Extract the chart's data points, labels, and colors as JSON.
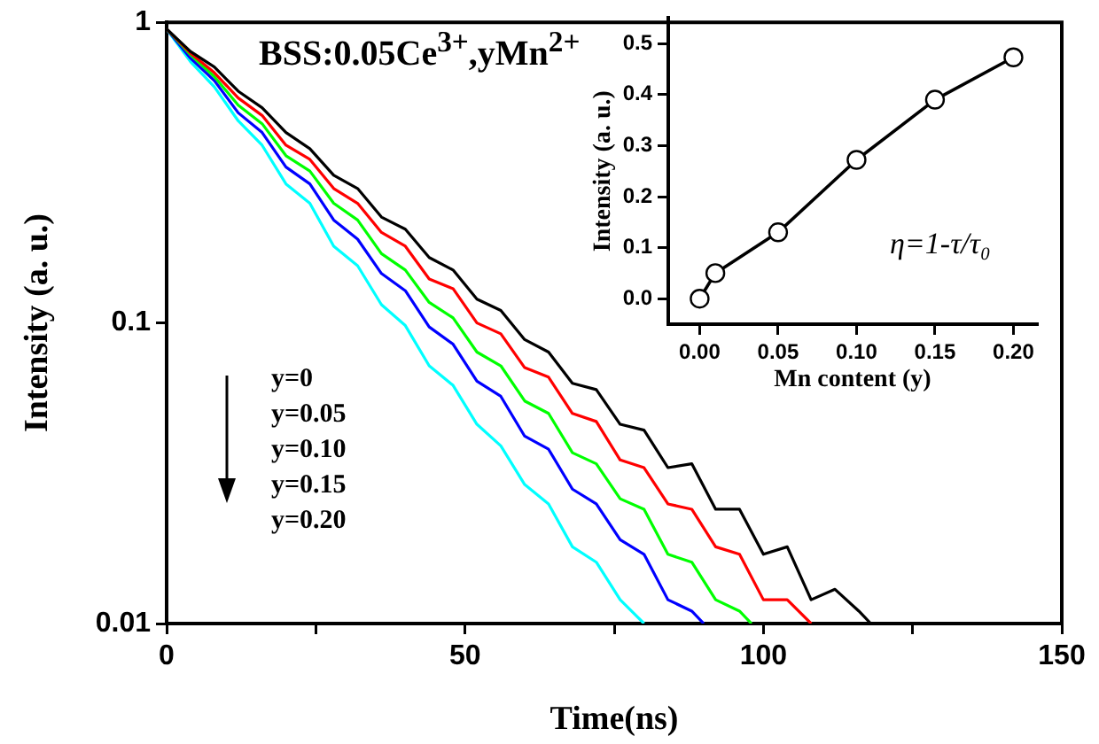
{
  "chart_data": [
    {
      "type": "line",
      "title": "BSS:0.05Ce$^{3+}$,yMn$^{2+}$",
      "xlabel": "Time(ns)",
      "ylabel": "Intensity (a. u.)",
      "log": "y",
      "grid": false,
      "marker": "none",
      "line_style": "solid",
      "annotations": [
        "y=0",
        "y=0.05",
        "y=0.10",
        "y=0.15",
        "y=0.20"
      ],
      "xlim": [
        0,
        150
      ],
      "xticks": [
        0,
        {
          "value": 25,
          "label": null
        },
        50,
        {
          "value": 75,
          "label": null
        },
        100,
        {
          "value": 125,
          "label": null
        },
        150
      ],
      "ylim": [
        0.01,
        1
      ],
      "yticks": [
        0.01,
        0.1,
        1
      ],
      "series": [
        {
          "color": "#000000",
          "x": [
            0,
            4,
            8,
            12,
            16,
            20,
            24,
            28,
            32,
            36,
            40,
            44,
            48,
            52,
            56,
            60,
            64,
            68,
            72,
            76,
            80,
            84,
            88,
            92,
            96,
            100,
            104,
            108,
            112,
            116,
            118
          ],
          "values": [
            0.95,
            0.8,
            0.71,
            0.59,
            0.52,
            0.43,
            0.38,
            0.31,
            0.28,
            0.225,
            0.205,
            0.165,
            0.15,
            0.12,
            0.11,
            0.088,
            0.08,
            0.063,
            0.06,
            0.046,
            0.044,
            0.033,
            0.034,
            0.024,
            0.024,
            0.017,
            0.018,
            0.012,
            0.013,
            0.011,
            0.01
          ]
        },
        {
          "color": "#ff0000",
          "x": [
            0,
            4,
            8,
            12,
            16,
            20,
            24,
            28,
            32,
            36,
            40,
            44,
            48,
            52,
            56,
            60,
            64,
            68,
            72,
            76,
            80,
            84,
            88,
            92,
            96,
            100,
            104,
            108
          ],
          "values": [
            0.95,
            0.79,
            0.68,
            0.56,
            0.49,
            0.39,
            0.35,
            0.28,
            0.25,
            0.2,
            0.18,
            0.14,
            0.13,
            0.1,
            0.092,
            0.071,
            0.066,
            0.05,
            0.047,
            0.035,
            0.033,
            0.025,
            0.024,
            0.018,
            0.017,
            0.012,
            0.012,
            0.01
          ]
        },
        {
          "color": "#00ff00",
          "x": [
            0,
            4,
            8,
            12,
            16,
            20,
            24,
            28,
            32,
            36,
            40,
            44,
            48,
            52,
            56,
            60,
            64,
            68,
            72,
            76,
            80,
            84,
            88,
            92,
            96,
            98
          ],
          "values": [
            0.95,
            0.78,
            0.66,
            0.53,
            0.46,
            0.36,
            0.32,
            0.25,
            0.22,
            0.17,
            0.15,
            0.117,
            0.104,
            0.08,
            0.072,
            0.055,
            0.05,
            0.037,
            0.034,
            0.026,
            0.024,
            0.017,
            0.016,
            0.012,
            0.011,
            0.01
          ]
        },
        {
          "color": "#0000ff",
          "x": [
            0,
            4,
            8,
            12,
            16,
            20,
            24,
            28,
            32,
            36,
            40,
            44,
            48,
            52,
            56,
            60,
            64,
            68,
            72,
            76,
            80,
            84,
            88,
            90
          ],
          "values": [
            0.95,
            0.76,
            0.64,
            0.5,
            0.43,
            0.33,
            0.29,
            0.22,
            0.19,
            0.146,
            0.128,
            0.097,
            0.085,
            0.064,
            0.057,
            0.042,
            0.038,
            0.028,
            0.025,
            0.019,
            0.017,
            0.012,
            0.011,
            0.01
          ]
        },
        {
          "color": "#00ffff",
          "x": [
            0,
            4,
            8,
            12,
            16,
            20,
            24,
            28,
            32,
            36,
            40,
            44,
            48,
            52,
            56,
            60,
            64,
            68,
            72,
            76,
            80
          ],
          "values": [
            0.95,
            0.74,
            0.61,
            0.47,
            0.39,
            0.29,
            0.25,
            0.18,
            0.155,
            0.115,
            0.098,
            0.072,
            0.062,
            0.046,
            0.039,
            0.029,
            0.025,
            0.018,
            0.016,
            0.012,
            0.01
          ]
        }
      ]
    },
    {
      "type": "line",
      "xlabel": "Mn content (y)",
      "ylabel": "Intensity (a. u.)",
      "grid": false,
      "marker": "circle",
      "line_style": "solid",
      "xlim": [
        -0.02,
        0.215
      ],
      "xticks": [
        {
          "value": 0,
          "label": "0.00"
        },
        0.05,
        {
          "value": 0.1,
          "label": "0.10"
        },
        0.15,
        {
          "value": 0.2,
          "label": "0.20"
        }
      ],
      "ylim": [
        -0.05,
        0.55
      ],
      "yticks": [
        {
          "value": 0,
          "label": "0.0"
        },
        0.1,
        0.2,
        0.3,
        0.4,
        0.5
      ],
      "annotations": [
        "η=1-τ/τ₀"
      ],
      "series": [
        {
          "color": "#000000",
          "x": [
            0,
            0.01,
            0.05,
            0.1,
            0.15,
            0.2
          ],
          "values": [
            0,
            0.05,
            0.13,
            0.272,
            0.39,
            0.473
          ]
        }
      ]
    }
  ]
}
